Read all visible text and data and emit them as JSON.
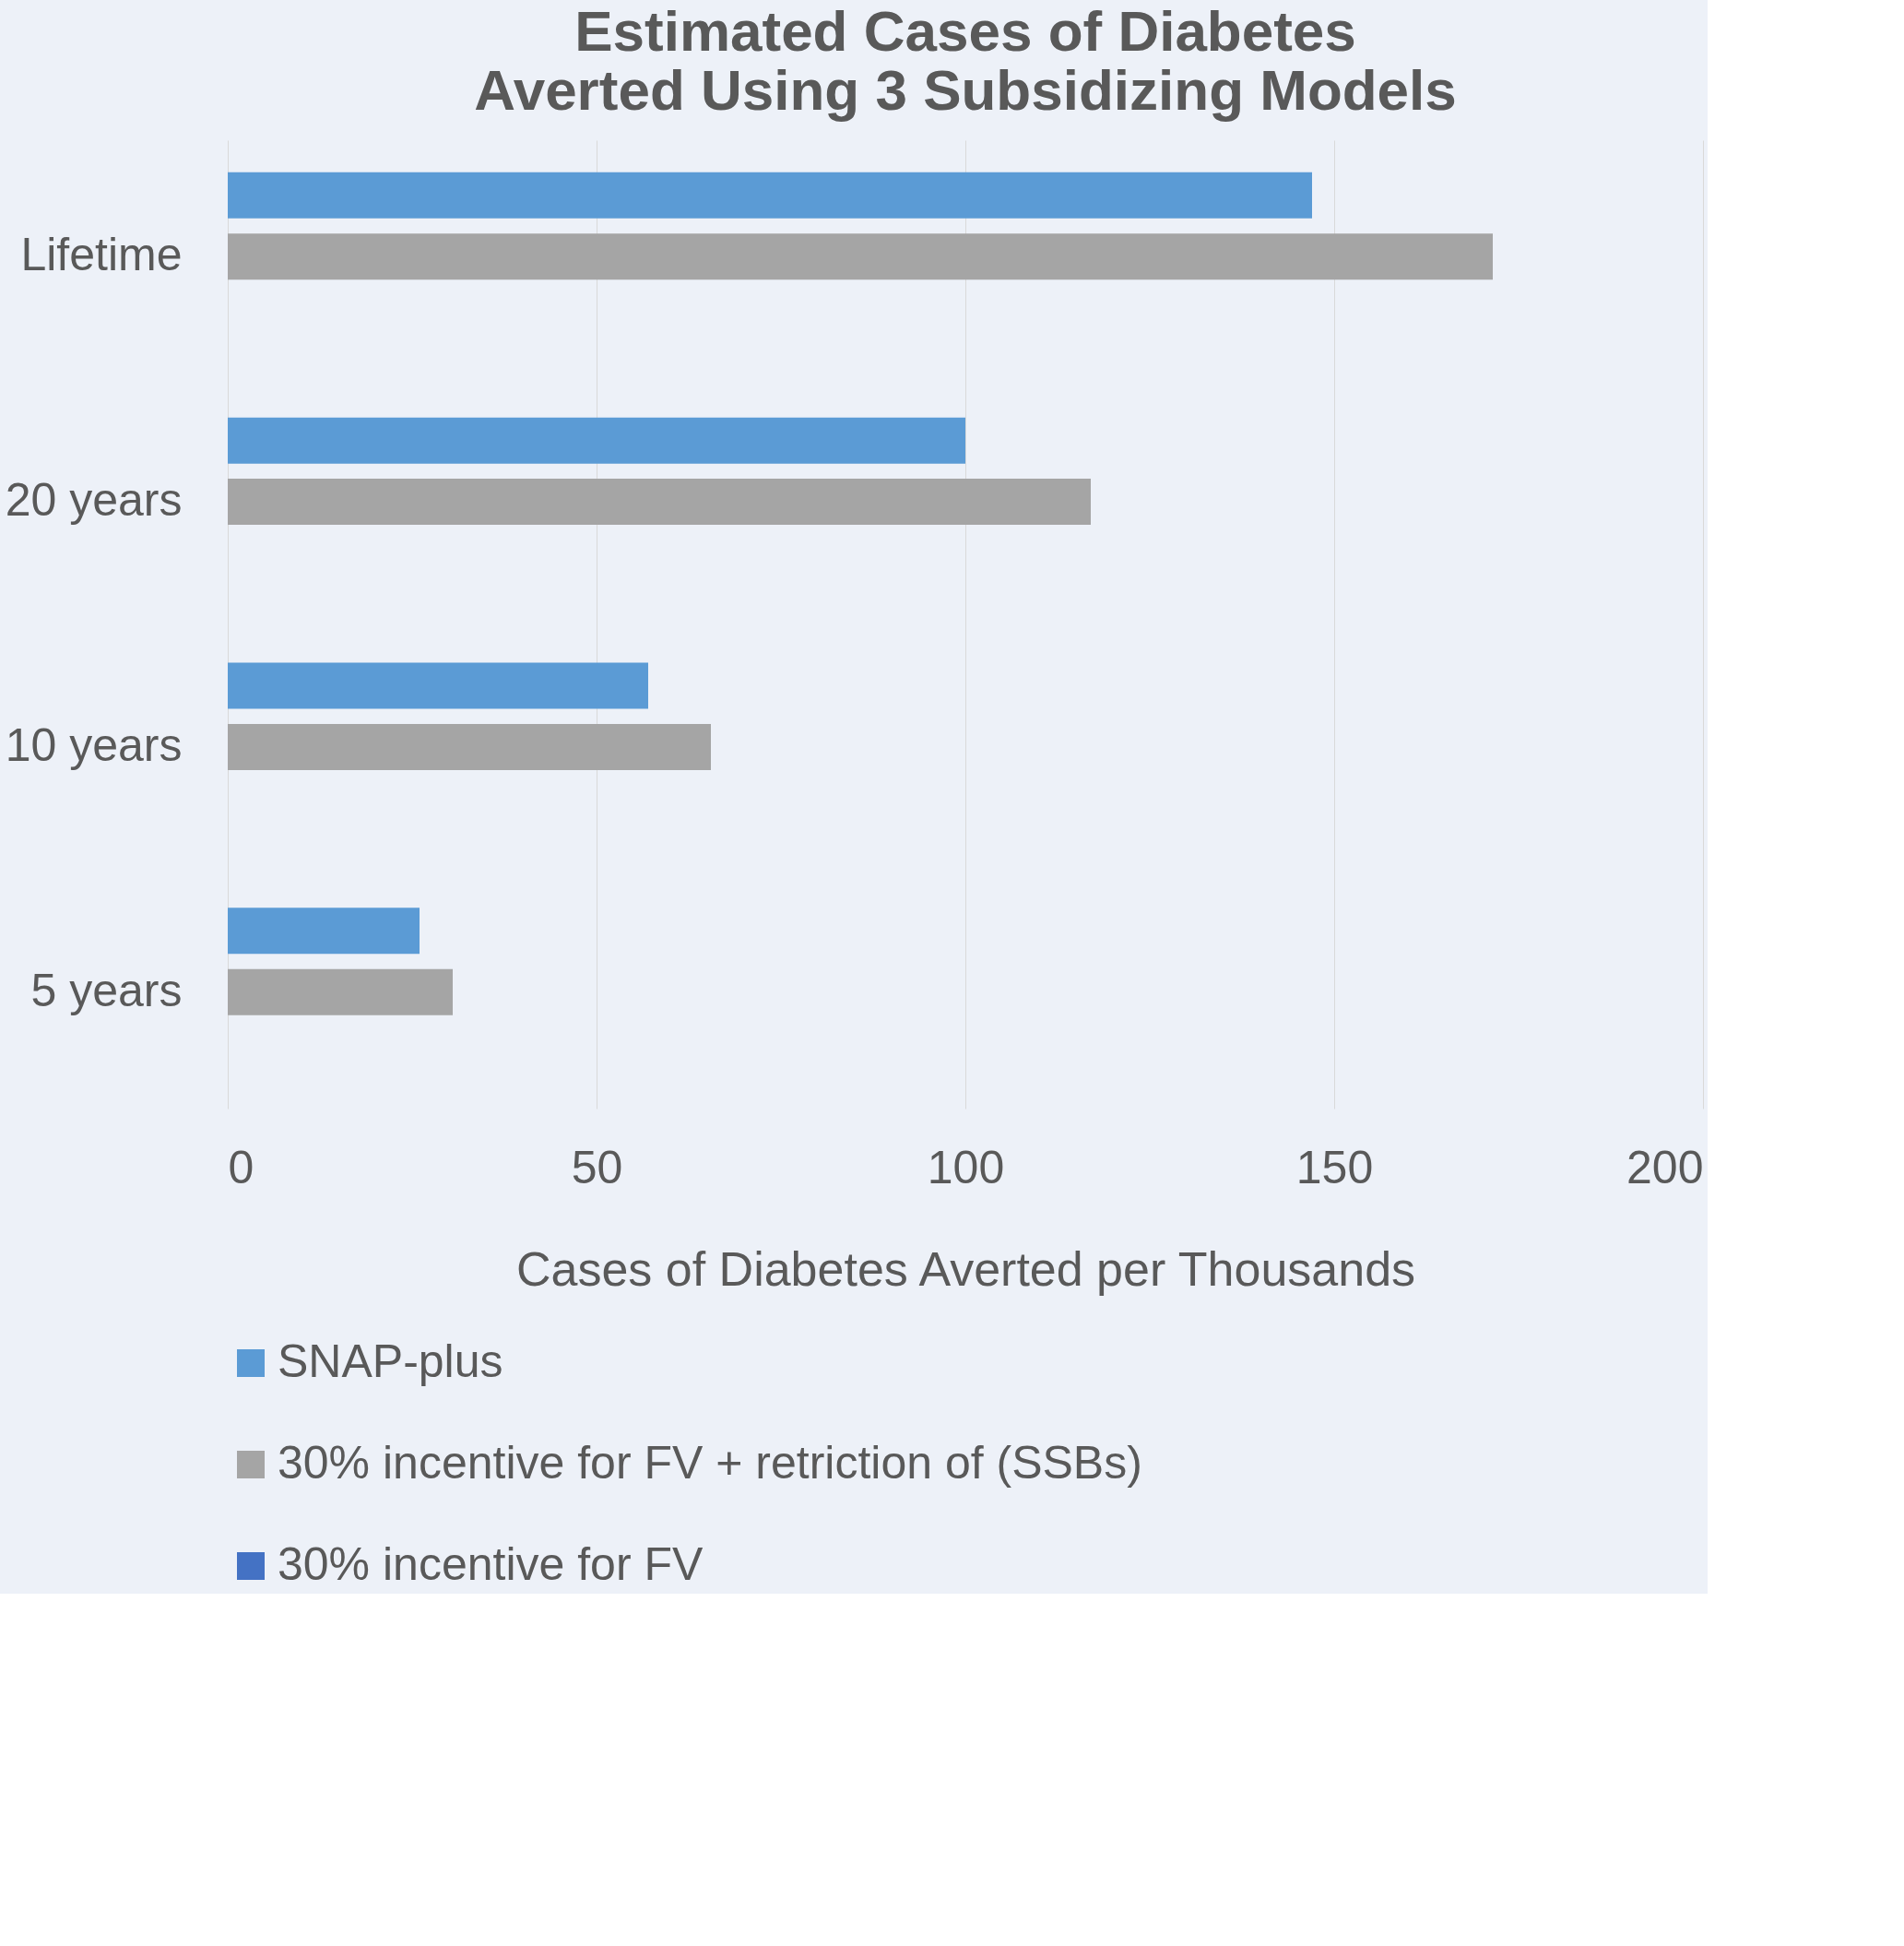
{
  "chart_data": {
    "type": "bar",
    "orientation": "horizontal",
    "title": [
      "Estimated Cases of Diabetes",
      "Averted Using 3 Subsidizing Models"
    ],
    "xlabel": "Cases of Diabetes Averted per Thousands",
    "categories": [
      "Lifetime",
      "20 years",
      "10 years",
      "5 years"
    ],
    "series": [
      {
        "name": "SNAP-plus",
        "color": "#5b9bd5",
        "values": [
          147,
          100,
          57,
          26
        ]
      },
      {
        "name": "30% incentive for FV + retriction of (SSBs)",
        "color": "#a5a5a5",
        "values": [
          171.5,
          117,
          65.5,
          30.5
        ]
      },
      {
        "name": "30% incentive for FV",
        "color": "#4472c4",
        "values": [
          null,
          null,
          null,
          null
        ]
      }
    ],
    "xlim": [
      0,
      200
    ],
    "xticks": [
      0,
      50,
      100,
      150,
      200
    ],
    "grid": "x",
    "legend": "bottom"
  }
}
